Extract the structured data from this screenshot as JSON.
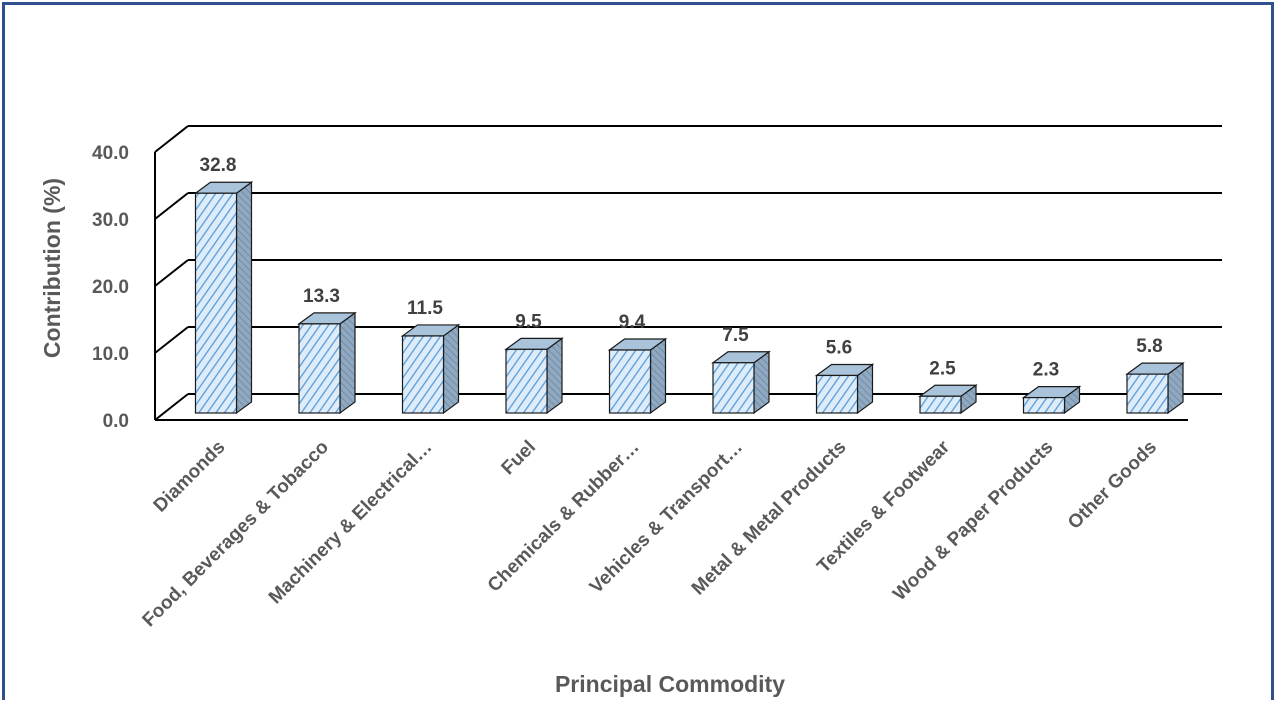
{
  "chart_data": {
    "type": "bar",
    "categories": [
      "Diamonds",
      "Food, Beverages & Tobacco",
      "Machinery & Electrical…",
      "Fuel",
      "Chemicals & Rubber…",
      "Vehicles & Transport…",
      "Metal & Metal Products",
      "Textiles & Footwear",
      "Wood & Paper Products",
      "Other Goods"
    ],
    "values": [
      32.8,
      13.3,
      11.5,
      9.5,
      9.4,
      7.5,
      5.6,
      2.5,
      2.3,
      5.8
    ],
    "value_labels": [
      "32.8",
      "13.3",
      "11.5",
      "9.5",
      "9.4",
      "7.5",
      "5.6",
      "2.5",
      "2.3",
      "5.8"
    ],
    "yticks": [
      "0.0",
      "10.0",
      "20.0",
      "30.0",
      "40.0"
    ],
    "ytick_values": [
      0,
      10,
      20,
      30,
      40
    ],
    "xlabel": "Principal Commodity",
    "ylabel": "Contribution (%)",
    "ylim": [
      0,
      40
    ],
    "grid": true,
    "style": "3d-column",
    "colors": {
      "bar_front": "#dcecfa",
      "bar_hatch": "#5b9bd5",
      "bar_side": "#8ea9c1",
      "bar_top": "#a9c3da",
      "gridline": "#000000",
      "frame": "#2f4f8f"
    }
  }
}
